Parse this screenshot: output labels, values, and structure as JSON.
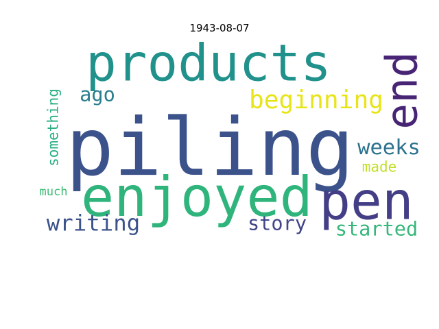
{
  "chart_data": {
    "type": "wordcloud",
    "title": "1943-08-07",
    "colormap": "viridis",
    "words": [
      {
        "text": "piling",
        "color": "#3b528b"
      },
      {
        "text": "products",
        "color": "#21918c"
      },
      {
        "text": "end",
        "color": "#482475"
      },
      {
        "text": "enjoyed",
        "color": "#2fb47c"
      },
      {
        "text": "pen",
        "color": "#433e85"
      },
      {
        "text": "beginning",
        "color": "#e7e419"
      },
      {
        "text": "weeks",
        "color": "#2c728e"
      },
      {
        "text": "ago",
        "color": "#287d8e"
      },
      {
        "text": "writing",
        "color": "#3b528b"
      },
      {
        "text": "story",
        "color": "#414487"
      },
      {
        "text": "started",
        "color": "#35b779"
      },
      {
        "text": "made",
        "color": "#c0df25"
      },
      {
        "text": "something",
        "color": "#29af7f"
      },
      {
        "text": "much",
        "color": "#3dbc74"
      }
    ]
  }
}
